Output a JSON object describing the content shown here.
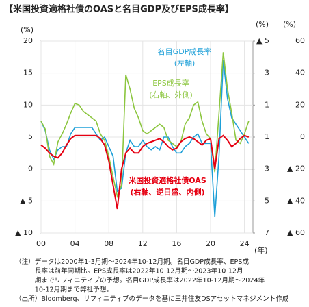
{
  "chart_data": {
    "type": "line",
    "title": "【米国投資適格社債のOASと名目GDP及びEPS成長率】",
    "ylabel": "(%)",
    "y2label": "(%)",
    "y3label": "(%)",
    "xlabel": "(年)",
    "x": [
      2000,
      2000.5,
      2001,
      2001.5,
      2002,
      2002.5,
      2003,
      2003.5,
      2004,
      2004.5,
      2005,
      2005.5,
      2006,
      2006.5,
      2007,
      2007.5,
      2008,
      2008.5,
      2009,
      2009.5,
      2010,
      2010.5,
      2011,
      2011.5,
      2012,
      2012.5,
      2013,
      2013.5,
      2014,
      2014.5,
      2015,
      2015.5,
      2016,
      2016.5,
      2017,
      2017.5,
      2018,
      2018.5,
      2019,
      2019.5,
      2020,
      2020.5,
      2021,
      2021.5,
      2022,
      2022.5,
      2023,
      2023.5,
      2024,
      2024.5
    ],
    "xlim": [
      2000,
      2025
    ],
    "xticks": [
      {
        "value": 2000,
        "label": "00"
      },
      {
        "value": 2004,
        "label": "04"
      },
      {
        "value": 2008,
        "label": "08"
      },
      {
        "value": 2012,
        "label": "12"
      },
      {
        "value": 2016,
        "label": "16"
      },
      {
        "value": 2020,
        "label": "20"
      },
      {
        "value": 2024,
        "label": "24"
      }
    ],
    "ylim": [
      -10,
      20
    ],
    "yticks": [
      {
        "value": -10,
        "label": "▲ 10"
      },
      {
        "value": -5,
        "label": "▲ 5"
      },
      0,
      5,
      10,
      15,
      20
    ],
    "y2lim": [
      7,
      -5
    ],
    "y2ticks": [
      7,
      5,
      3,
      1,
      {
        "value": -1,
        "label": "1"
      },
      {
        "value": -3,
        "label": "3"
      },
      {
        "value": -5,
        "label": "▲ 5"
      }
    ],
    "y3lim": [
      -60,
      60
    ],
    "y3ticks": [
      {
        "value": -60,
        "label": "▲ 60"
      },
      {
        "value": -40,
        "label": "▲ 40"
      },
      {
        "value": -20,
        "label": "▲ 20"
      },
      0,
      20,
      40,
      60
    ],
    "grid": true,
    "series": [
      {
        "name": "名目GDP成長率",
        "note": "(左軸)",
        "color": "#1ea0d8",
        "axis": "y",
        "values": [
          7.5,
          6,
          3,
          1.5,
          3,
          3.5,
          3.5,
          5.5,
          6.5,
          6.5,
          6.5,
          6.5,
          6.5,
          5.5,
          4.5,
          5,
          3.5,
          2,
          -3.5,
          -3,
          2.5,
          4.5,
          3.5,
          3.5,
          4.5,
          3.5,
          3,
          3.5,
          3,
          5,
          5,
          3.5,
          2.5,
          2.5,
          3.5,
          4,
          5,
          5.5,
          4,
          4,
          4,
          -7.5,
          2,
          17,
          11,
          8,
          7,
          6,
          5,
          4
        ]
      },
      {
        "name": "EPS成長率",
        "note": "(右軸、外側)",
        "color": "#8cc63f",
        "axis": "y3",
        "values": [
          10,
          5,
          -12,
          -17,
          -3,
          2,
          8,
          15,
          21,
          20,
          16,
          14,
          12,
          10,
          2,
          -2,
          -12,
          -25,
          -37,
          -30,
          39,
          30,
          18,
          12,
          4,
          2,
          4,
          6,
          8,
          6,
          -2,
          -4,
          -6,
          -3,
          8,
          12,
          20,
          22,
          10,
          2,
          -1,
          -22,
          15,
          53,
          30,
          15,
          -2,
          -4,
          2,
          10
        ]
      },
      {
        "name": "米国投資適格社債OAS",
        "note": "(右軸、逆目盛、内側)",
        "color": "#e60012",
        "axis": "y2",
        "values": [
          1.5,
          1.7,
          2.0,
          2.2,
          2.3,
          2.0,
          1.5,
          1.1,
          0.9,
          0.9,
          0.9,
          0.9,
          0.9,
          0.9,
          1.1,
          1.5,
          2.5,
          4.0,
          5.5,
          3.0,
          2.0,
          1.7,
          2.0,
          2.0,
          1.6,
          1.4,
          1.3,
          1.2,
          1.1,
          1.3,
          1.6,
          1.8,
          1.7,
          1.3,
          1.1,
          1.0,
          1.1,
          1.3,
          1.5,
          1.2,
          1.1,
          3.0,
          1.1,
          0.9,
          1.2,
          1.6,
          1.4,
          1.1,
          0.9,
          1.0
        ]
      }
    ],
    "notes": [
      "（注）データは2000年1-3月期～2024年10-12月期。名目GDP成長率、EPS成",
      "　　　長率は前年同期比。EPS成長率は2022年10-12月期～2023年10-12月",
      "　　　期までリフィニティブの予想。名目GDP成長率は2022年10-12月期～2024年",
      "　　　10-12月期まで弊社予想。",
      "（出所）Bloomberg、リフィニティブのデータを基に三井住友DSアセットマネジメント作成"
    ]
  }
}
